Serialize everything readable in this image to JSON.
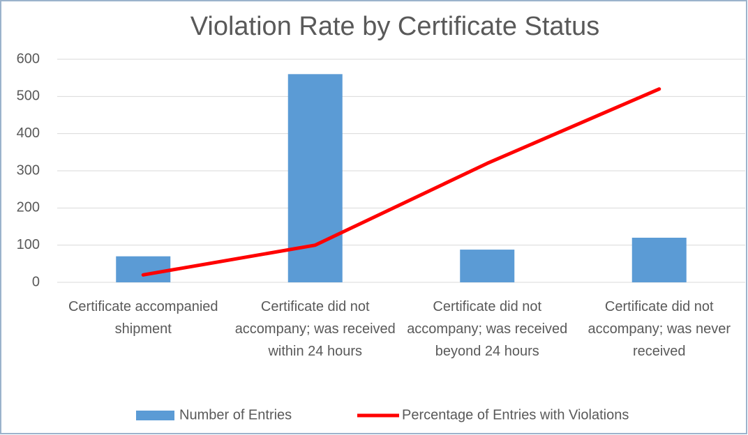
{
  "chart_data": {
    "type": "bar",
    "title": "Violation Rate  by Certificate Status",
    "categories": [
      "Certificate accompanied shipment",
      "Certificate did not accompany; was received within 24 hours",
      "Certificate did not accompany; was received beyond 24 hours",
      "Certificate did not accompany; was never received"
    ],
    "series": [
      {
        "name": "Number of Entries",
        "type": "bar",
        "color": "#5b9bd5",
        "values": [
          70,
          560,
          88,
          120
        ]
      },
      {
        "name": "Percentage of Entries with Violations",
        "type": "line",
        "color": "#ff0000",
        "values": [
          20,
          100,
          320,
          520
        ]
      }
    ],
    "ylim": [
      0,
      600
    ],
    "yticks": [
      0,
      100,
      200,
      300,
      400,
      500,
      600
    ],
    "grid": true,
    "legend": "bottom"
  }
}
